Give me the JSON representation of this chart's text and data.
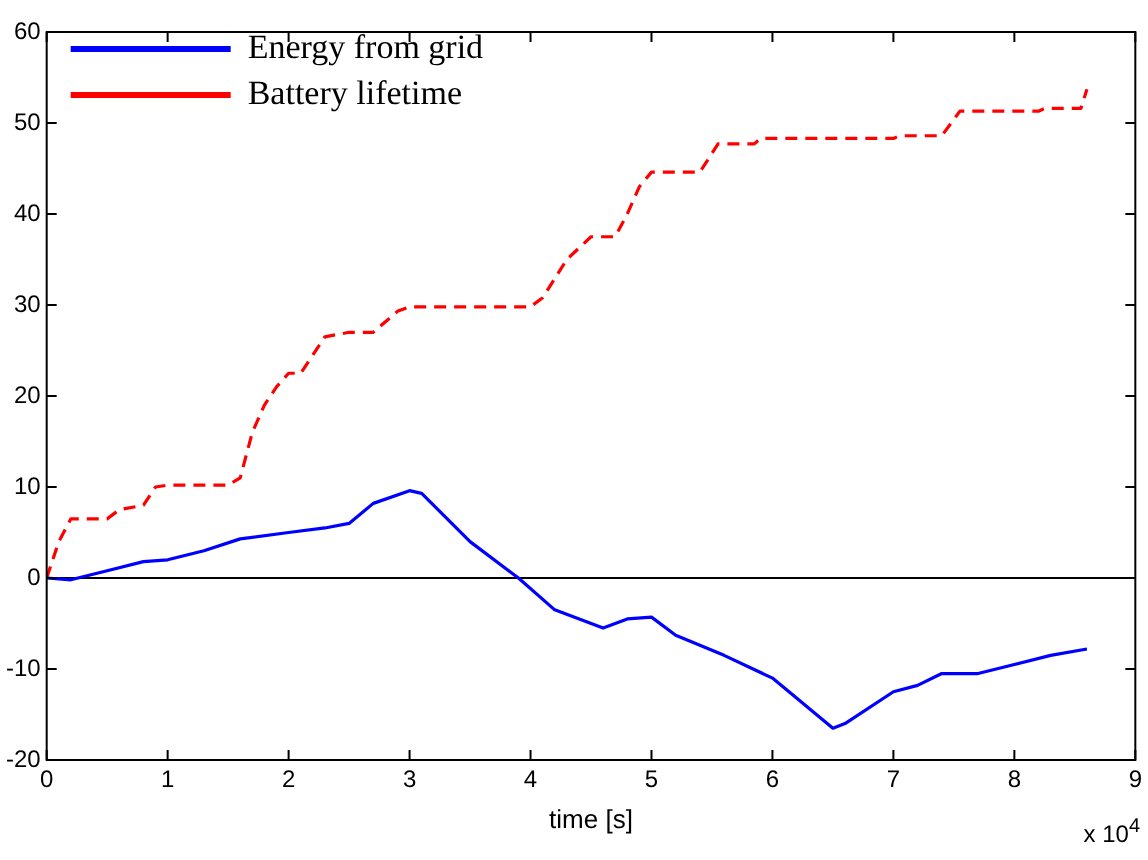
{
  "chart_data": {
    "type": "line",
    "xlabel": "time [s]",
    "annotations": [
      "x 10$^{4}$"
    ],
    "xlim": [
      0,
      9
    ],
    "xticks": [
      0,
      1,
      2,
      3,
      4,
      5,
      6,
      7,
      8,
      9
    ],
    "ylim": [
      -20,
      60
    ],
    "yticks": [
      -20,
      -10,
      0,
      10,
      20,
      30,
      40,
      50,
      60
    ],
    "grid": false,
    "legend": "top left",
    "marker": "none",
    "ref_lines": [
      {
        "axis": "y",
        "value": 0,
        "color": "#000000"
      }
    ],
    "series": [
      {
        "name": "Energy from grid",
        "color": "#0000ff",
        "line_style": "solid",
        "x": [
          0,
          0.2,
          0.5,
          0.8,
          1.0,
          1.3,
          1.6,
          2.0,
          2.3,
          2.5,
          2.7,
          3.0,
          3.1,
          3.5,
          3.9,
          4.2,
          4.6,
          4.8,
          5.0,
          5.2,
          5.6,
          6.0,
          6.5,
          6.6,
          7.0,
          7.2,
          7.4,
          7.7,
          8.0,
          8.3,
          8.6
        ],
        "values": [
          0,
          -0.2,
          0.8,
          1.8,
          2,
          3,
          4.3,
          5,
          5.5,
          6,
          8.2,
          9.6,
          9.3,
          4,
          0,
          -3.5,
          -5.5,
          -4.5,
          -4.3,
          -6.3,
          -8.5,
          -11,
          -16.5,
          -16,
          -12.5,
          -11.8,
          -10.5,
          -10.5,
          -9.5,
          -8.5,
          -7.8
        ]
      },
      {
        "name": "Battery lifetime",
        "color": "#ff0000",
        "line_style": "dashed",
        "x": [
          0,
          0.1,
          0.2,
          0.5,
          0.6,
          0.8,
          0.9,
          1.0,
          1.5,
          1.6,
          1.7,
          1.8,
          1.9,
          2.0,
          2.1,
          2.2,
          2.3,
          2.5,
          2.7,
          2.9,
          3.0,
          4.0,
          4.1,
          4.3,
          4.5,
          4.7,
          4.8,
          4.9,
          5.0,
          5.4,
          5.55,
          5.85,
          5.9,
          7.0,
          7.05,
          7.4,
          7.55,
          8.2,
          8.25,
          8.55,
          8.6
        ],
        "values": [
          0,
          4,
          6.5,
          6.5,
          7.5,
          8,
          10,
          10.2,
          10.2,
          11,
          16,
          19,
          21,
          22.5,
          22.5,
          24.5,
          26.5,
          27,
          27,
          29.3,
          29.8,
          29.8,
          30.8,
          35,
          37.5,
          37.5,
          40,
          43,
          44.6,
          44.6,
          47.7,
          47.7,
          48.3,
          48.3,
          48.6,
          48.6,
          51.3,
          51.3,
          51.6,
          51.6,
          53.7
        ]
      }
    ]
  }
}
